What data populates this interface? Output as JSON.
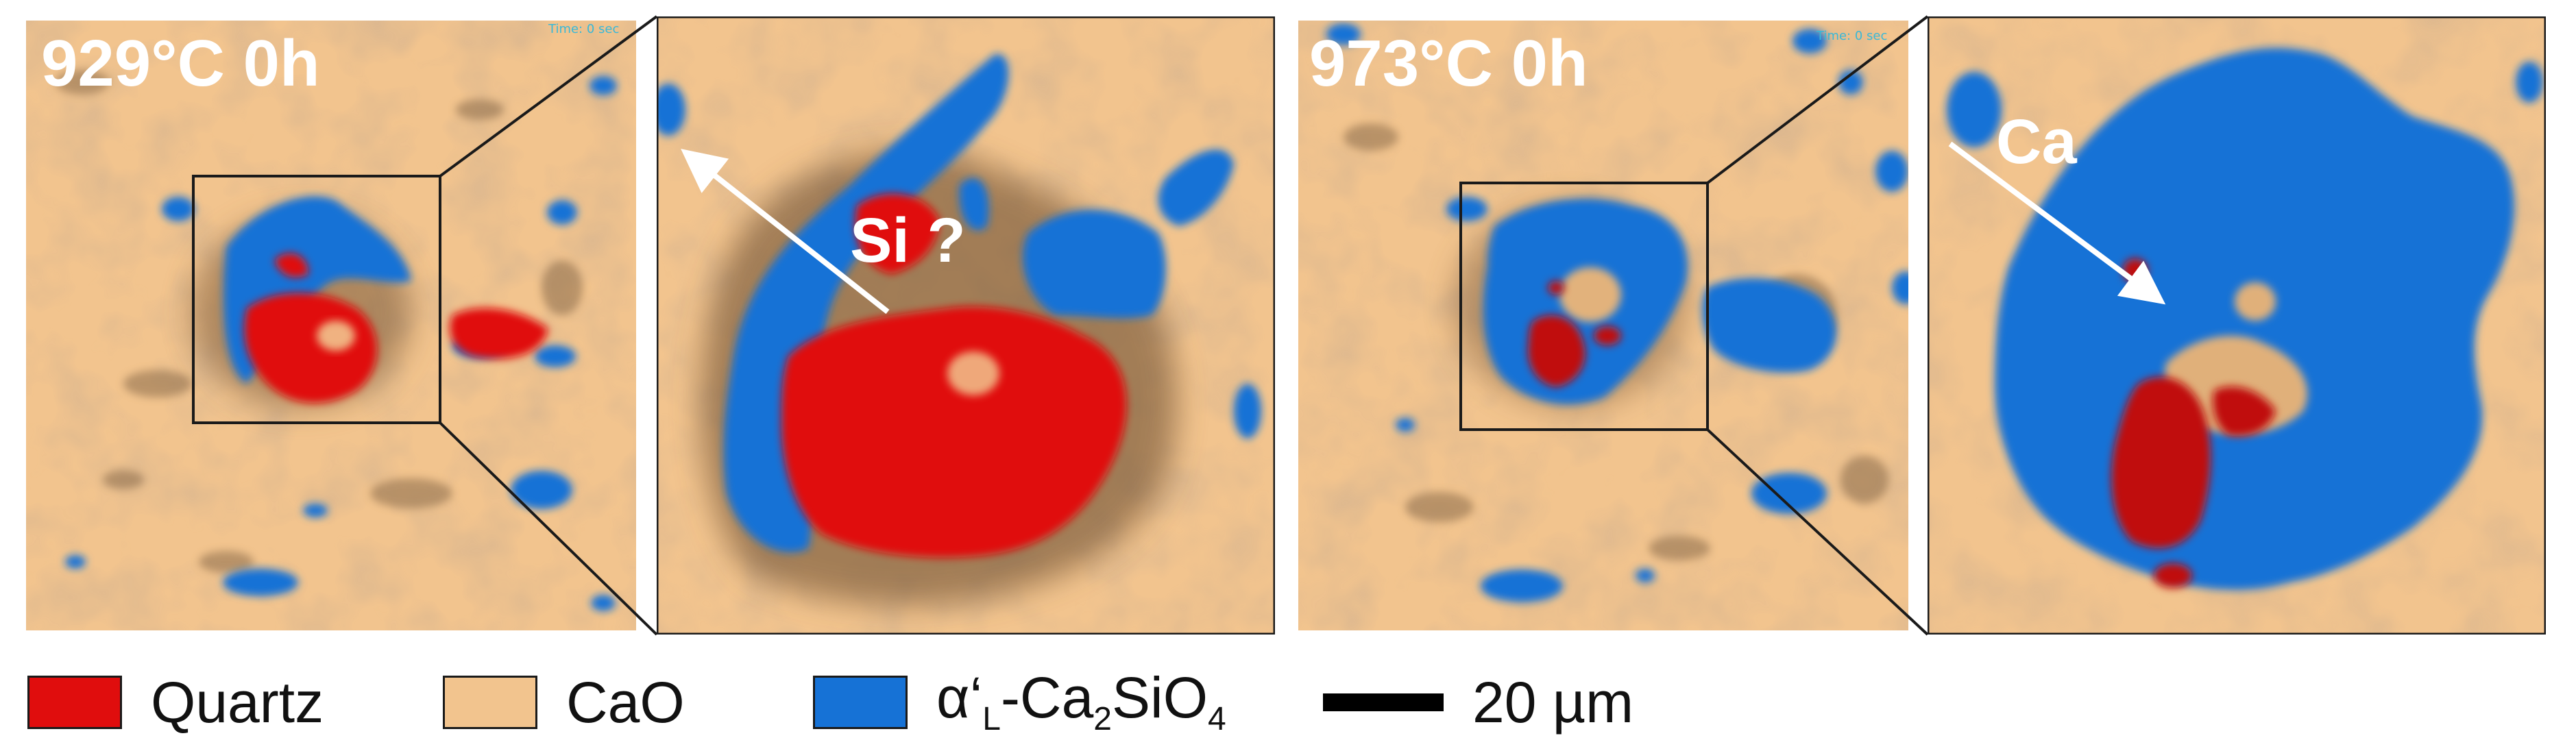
{
  "panels": {
    "left": {
      "label": "929°C 0h",
      "arrow_label": "Si ?",
      "stamp": "Time: 0 sec"
    },
    "right": {
      "label": "973°C 0h",
      "arrow_label": "Ca",
      "stamp": "Time: 0 sec"
    }
  },
  "colors": {
    "quartz": "#e00d0d",
    "cao": "#f2c48e",
    "silicate": "#1672d6",
    "frame": "#1a1a1a",
    "arrow": "#ffffff"
  },
  "legend": {
    "quartz": "Quartz",
    "cao": "CaO",
    "silicate_alpha": "α‘",
    "silicate_sub_l": "L",
    "silicate_main": "-Ca",
    "silicate_sub_2": "2",
    "silicate_si": "SiO",
    "silicate_sub_4": "4",
    "scale": "20 µm"
  }
}
